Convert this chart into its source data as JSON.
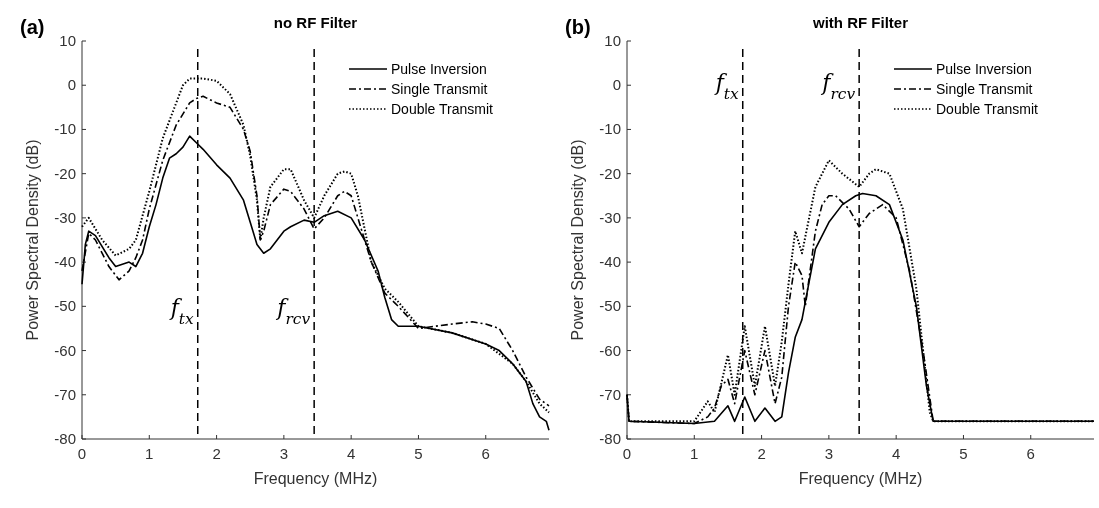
{
  "chart_data": [
    {
      "type": "line",
      "title": "no RF Filter",
      "xlabel": "Frequency (MHz)",
      "ylabel": "Power Spectral Density (dB)",
      "annotations": [
        "(a)"
      ],
      "xlim": [
        0,
        6.94
      ],
      "ylim": [
        -80,
        10
      ],
      "xticks": [
        0,
        1,
        2,
        3,
        4,
        5,
        6
      ],
      "yticks": [
        -80,
        -70,
        -60,
        -50,
        -40,
        -30,
        -20,
        -10,
        0,
        10
      ],
      "legend": "top right",
      "grid": false,
      "ref_lines": [
        {
          "axis": "x",
          "value": 1.72,
          "label": "f$_{tx}$",
          "line_style": "dashed"
        },
        {
          "axis": "x",
          "value": 3.45,
          "label": "f$_{rcv}$",
          "line_style": "dashed"
        }
      ],
      "series": [
        {
          "name": "Pulse Inversion",
          "color": "#000000",
          "line_style": "solid",
          "x": [
            0,
            0.05,
            0.1,
            0.2,
            0.4,
            0.5,
            0.6,
            0.7,
            0.8,
            0.9,
            1.0,
            1.1,
            1.2,
            1.3,
            1.4,
            1.5,
            1.6,
            1.7,
            1.8,
            2.0,
            2.2,
            2.4,
            2.5,
            2.6,
            2.7,
            2.8,
            3.0,
            3.1,
            3.3,
            3.45,
            3.6,
            3.8,
            4.0,
            4.2,
            4.4,
            4.5,
            4.6,
            4.7,
            5.0,
            5.5,
            6.0,
            6.2,
            6.4,
            6.6,
            6.7,
            6.8,
            6.9,
            6.94
          ],
          "values": [
            -45,
            -36,
            -33,
            -34,
            -39,
            -41,
            -40.5,
            -40,
            -41,
            -38,
            -32,
            -27,
            -21,
            -16.5,
            -15.5,
            -14,
            -11.5,
            -13,
            -14.5,
            -18,
            -21,
            -26,
            -31,
            -36,
            -38,
            -37,
            -33,
            -32,
            -30.5,
            -31,
            -29.5,
            -28.5,
            -30,
            -35,
            -42,
            -48,
            -53,
            -54.5,
            -54.5,
            -56,
            -58.5,
            -60,
            -63,
            -67,
            -72,
            -75,
            -76,
            -78
          ]
        },
        {
          "name": "Single Transmit",
          "color": "#000000",
          "line_style": "dashed",
          "x": [
            0,
            0.1,
            0.2,
            0.4,
            0.55,
            0.7,
            0.8,
            0.9,
            1.0,
            1.2,
            1.4,
            1.6,
            1.7,
            1.8,
            2.0,
            2.2,
            2.4,
            2.5,
            2.6,
            2.65,
            2.7,
            2.8,
            3.0,
            3.1,
            3.3,
            3.45,
            3.6,
            3.8,
            3.9,
            4.0,
            4.1,
            4.3,
            4.5,
            4.7,
            5.0,
            5.5,
            5.8,
            6.0,
            6.2,
            6.4,
            6.6,
            6.8,
            6.94
          ],
          "values": [
            -42,
            -33.5,
            -35,
            -41,
            -44,
            -42,
            -39,
            -35,
            -28,
            -17,
            -9,
            -4,
            -3,
            -2.5,
            -4,
            -5,
            -10,
            -15,
            -25,
            -35,
            -33,
            -27,
            -23.5,
            -24,
            -28,
            -32.5,
            -30,
            -25,
            -24,
            -25,
            -30,
            -40,
            -47,
            -50,
            -55,
            -54,
            -53.5,
            -54,
            -55,
            -60,
            -66,
            -71,
            -72.5
          ]
        },
        {
          "name": "Double Transmit",
          "color": "#000000",
          "line_style": "dotted",
          "x": [
            0,
            0.1,
            0.3,
            0.5,
            0.7,
            0.8,
            1.0,
            1.2,
            1.4,
            1.5,
            1.6,
            1.7,
            1.8,
            2.0,
            2.2,
            2.4,
            2.5,
            2.6,
            2.65,
            2.7,
            2.8,
            3.0,
            3.1,
            3.3,
            3.45,
            3.6,
            3.8,
            3.9,
            4.0,
            4.1,
            4.3,
            4.5,
            4.7,
            5.0,
            5.5,
            6.0,
            6.4,
            6.6,
            6.8,
            6.94
          ],
          "values": [
            -32,
            -30,
            -35,
            -38.5,
            -37,
            -35,
            -24,
            -12,
            -4,
            0,
            1.5,
            1.5,
            1.5,
            1,
            -2,
            -9,
            -16,
            -26,
            -35,
            -30,
            -23,
            -19,
            -19,
            -26,
            -30,
            -25,
            -20,
            -19.5,
            -20,
            -25,
            -40,
            -46,
            -49,
            -54.5,
            -56,
            -58.5,
            -63,
            -67,
            -72,
            -74
          ]
        }
      ]
    },
    {
      "type": "line",
      "title": "with RF Filter",
      "xlabel": "Frequency (MHz)",
      "ylabel": "Power Spectral Density (dB)",
      "annotations": [
        "(b)"
      ],
      "xlim": [
        0,
        6.94
      ],
      "ylim": [
        -80,
        10
      ],
      "xticks": [
        0,
        1,
        2,
        3,
        4,
        5,
        6
      ],
      "yticks": [
        -80,
        -70,
        -60,
        -50,
        -40,
        -30,
        -20,
        -10,
        0,
        10
      ],
      "legend": "top right",
      "grid": false,
      "ref_lines": [
        {
          "axis": "x",
          "value": 1.72,
          "label": "f$_{tx}$",
          "line_style": "dashed"
        },
        {
          "axis": "x",
          "value": 3.45,
          "label": "f$_{rcv}$",
          "line_style": "dashed"
        }
      ],
      "series": [
        {
          "name": "Pulse Inversion",
          "color": "#000000",
          "line_style": "solid",
          "x": [
            0,
            0.03,
            1.0,
            1.3,
            1.5,
            1.6,
            1.75,
            1.9,
            2.05,
            2.2,
            2.3,
            2.4,
            2.5,
            2.6,
            2.7,
            2.8,
            3.0,
            3.2,
            3.4,
            3.5,
            3.7,
            3.9,
            4.1,
            4.3,
            4.45,
            4.55,
            5,
            6,
            6.94
          ],
          "values": [
            -70,
            -76,
            -76.5,
            -76,
            -72.5,
            -76,
            -70.5,
            -76,
            -73,
            -76,
            -75,
            -65,
            -57,
            -53,
            -45,
            -37,
            -31,
            -27,
            -25,
            -24.5,
            -25,
            -27,
            -35,
            -50,
            -68,
            -76,
            -76,
            -76,
            -76
          ]
        },
        {
          "name": "Single Transmit",
          "color": "#000000",
          "line_style": "dashed",
          "x": [
            0,
            0.03,
            1.0,
            1.2,
            1.3,
            1.4,
            1.5,
            1.6,
            1.75,
            1.9,
            2.05,
            2.2,
            2.3,
            2.4,
            2.5,
            2.6,
            2.65,
            2.8,
            2.9,
            3.0,
            3.1,
            3.3,
            3.45,
            3.6,
            3.8,
            4.0,
            4.2,
            4.4,
            4.55,
            6.94
          ],
          "values": [
            -70,
            -76,
            -76.5,
            -75,
            -73,
            -68,
            -66.5,
            -72,
            -60,
            -70,
            -60,
            -72,
            -66,
            -50,
            -40,
            -43,
            -50,
            -33,
            -27,
            -25,
            -25,
            -28,
            -32,
            -29,
            -27,
            -30,
            -42,
            -60,
            -76,
            -76
          ]
        },
        {
          "name": "Double Transmit",
          "color": "#000000",
          "line_style": "dotted",
          "x": [
            0,
            0.03,
            1.0,
            1.2,
            1.3,
            1.5,
            1.6,
            1.75,
            1.9,
            2.05,
            2.2,
            2.3,
            2.4,
            2.5,
            2.6,
            2.8,
            3.0,
            3.2,
            3.45,
            3.6,
            3.7,
            3.9,
            4.1,
            4.3,
            4.5,
            4.55,
            6.94
          ],
          "values": [
            -70,
            -76,
            -76,
            -71.5,
            -74,
            -61,
            -70,
            -54.5,
            -68,
            -54.5,
            -68,
            -58,
            -45,
            -33,
            -38,
            -23,
            -17,
            -20,
            -23,
            -20,
            -19,
            -20,
            -28,
            -46,
            -74,
            -76,
            -76
          ]
        }
      ]
    }
  ]
}
